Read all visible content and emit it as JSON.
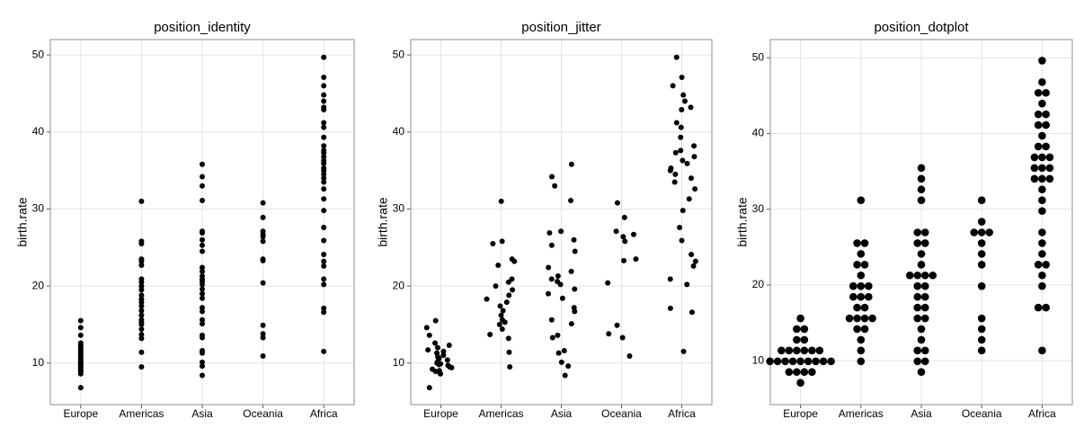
{
  "chart_data": [
    {
      "type": "scatter",
      "title": "position_identity",
      "y_label": "birth.rate",
      "categories": [
        "Europe",
        "Americas",
        "Asia",
        "Oceania",
        "Africa"
      ],
      "values": [
        [
          6.8,
          8.6,
          8.9,
          9.0,
          9.2,
          9.4,
          9.5,
          9.7,
          9.8,
          9.9,
          10.0,
          10.2,
          10.4,
          10.6,
          10.8,
          11.0,
          11.3,
          11.5,
          11.7,
          12.0,
          12.3,
          12.6,
          13.6,
          14.6,
          15.5
        ],
        [
          9.5,
          11.4,
          13.2,
          13.7,
          14.4,
          15.0,
          15.3,
          15.6,
          16.2,
          16.8,
          17.4,
          17.9,
          18.3,
          18.8,
          19.5,
          20.0,
          20.5,
          20.9,
          22.7,
          23.2,
          23.5,
          25.5,
          25.8,
          31.0
        ],
        [
          8.4,
          9.6,
          10.1,
          11.3,
          11.6,
          13.3,
          13.6,
          15.1,
          15.6,
          16.7,
          17.2,
          18.4,
          19.0,
          19.6,
          20.2,
          20.6,
          20.9,
          21.3,
          21.9,
          22.4,
          24.5,
          25.3,
          26.0,
          26.9,
          27.1,
          31.1,
          33.0,
          34.2,
          35.8
        ],
        [
          10.9,
          13.3,
          13.8,
          14.9,
          20.4,
          23.3,
          23.5,
          25.8,
          26.4,
          26.7,
          27.1,
          28.9,
          30.8
        ],
        [
          11.5,
          16.6,
          17.1,
          20.2,
          20.9,
          22.6,
          23.2,
          24.1,
          25.9,
          27.6,
          29.8,
          31.3,
          32.6,
          33.5,
          34.0,
          34.5,
          35.0,
          35.3,
          35.9,
          36.3,
          36.8,
          37.3,
          37.6,
          38.2,
          39.3,
          40.6,
          41.2,
          42.9,
          43.2,
          44.0,
          44.8,
          46.0,
          47.1,
          49.7
        ]
      ],
      "color": "#000000",
      "ylim": [
        4.6,
        52
      ],
      "yticks": [
        10,
        20,
        30,
        40,
        50
      ],
      "grid": true
    },
    {
      "type": "jitter",
      "title": "position_jitter",
      "y_label": "birth.rate",
      "categories": [
        "Europe",
        "Americas",
        "Asia",
        "Oceania",
        "Africa"
      ],
      "values": [
        [
          6.8,
          8.6,
          8.9,
          9.0,
          9.2,
          9.4,
          9.5,
          9.7,
          9.8,
          9.9,
          10.0,
          10.2,
          10.4,
          10.6,
          10.8,
          11.0,
          11.3,
          11.5,
          11.7,
          12.0,
          12.3,
          12.6,
          13.6,
          14.6,
          15.5
        ],
        [
          9.5,
          11.4,
          13.2,
          13.7,
          14.4,
          15.0,
          15.3,
          15.6,
          16.2,
          16.8,
          17.4,
          17.9,
          18.3,
          18.8,
          19.5,
          20.0,
          20.5,
          20.9,
          22.7,
          23.2,
          23.5,
          25.5,
          25.8,
          31.0
        ],
        [
          8.4,
          9.6,
          10.1,
          11.3,
          11.6,
          13.3,
          13.6,
          15.1,
          15.6,
          16.7,
          17.2,
          18.4,
          19.0,
          19.6,
          20.2,
          20.6,
          20.9,
          21.3,
          21.9,
          22.4,
          24.5,
          25.3,
          26.0,
          26.9,
          27.1,
          31.1,
          33.0,
          34.2,
          35.8
        ],
        [
          10.9,
          13.3,
          13.8,
          14.9,
          20.4,
          23.3,
          23.5,
          25.8,
          26.4,
          26.7,
          27.1,
          28.9,
          30.8
        ],
        [
          11.5,
          16.6,
          17.1,
          20.2,
          20.9,
          22.6,
          23.2,
          24.1,
          25.9,
          27.6,
          29.8,
          31.3,
          32.6,
          33.5,
          34.0,
          34.5,
          35.0,
          35.3,
          35.9,
          36.3,
          36.8,
          37.3,
          37.6,
          38.2,
          39.3,
          40.6,
          41.2,
          42.9,
          43.2,
          44.0,
          44.8,
          46.0,
          47.1,
          49.7
        ]
      ],
      "color": "#000000",
      "ylim": [
        4.6,
        52
      ],
      "yticks": [
        10,
        20,
        30,
        40,
        50
      ],
      "grid": true
    },
    {
      "type": "dotplot",
      "title": "position_dotplot",
      "y_label": "birth.rate",
      "categories": [
        "Europe",
        "Americas",
        "Asia",
        "Oceania",
        "Africa"
      ],
      "values": [
        [
          6.8,
          8.6,
          8.9,
          9.0,
          9.2,
          9.4,
          9.5,
          9.7,
          9.8,
          9.9,
          10.0,
          10.2,
          10.4,
          10.6,
          10.8,
          11.0,
          11.3,
          11.5,
          11.7,
          12.0,
          12.3,
          12.6,
          13.6,
          14.6,
          15.5
        ],
        [
          9.5,
          11.4,
          13.2,
          13.7,
          14.4,
          15.0,
          15.3,
          15.6,
          16.2,
          16.8,
          17.4,
          17.9,
          18.3,
          18.8,
          19.5,
          20.0,
          20.5,
          20.9,
          22.7,
          23.2,
          23.5,
          25.5,
          25.8,
          31.0
        ],
        [
          8.4,
          9.6,
          10.1,
          11.3,
          11.6,
          13.3,
          13.6,
          15.1,
          15.6,
          16.7,
          17.2,
          18.4,
          19.0,
          19.6,
          20.2,
          20.6,
          20.9,
          21.3,
          21.9,
          22.4,
          24.5,
          25.3,
          26.0,
          26.9,
          27.1,
          31.1,
          33.0,
          34.2,
          35.8
        ],
        [
          10.9,
          13.3,
          13.8,
          14.9,
          20.4,
          23.3,
          23.5,
          25.8,
          26.4,
          26.7,
          27.1,
          28.9,
          30.8
        ],
        [
          11.5,
          16.6,
          17.1,
          20.2,
          20.9,
          22.6,
          23.2,
          24.1,
          25.9,
          27.6,
          29.8,
          31.3,
          32.6,
          33.5,
          34.0,
          34.5,
          35.0,
          35.3,
          35.9,
          36.3,
          36.8,
          37.3,
          37.6,
          38.2,
          39.3,
          40.6,
          41.2,
          42.9,
          43.2,
          44.0,
          44.8,
          46.0,
          47.1,
          49.7
        ]
      ],
      "color": "#000000",
      "ylim": [
        4.2,
        52.4
      ],
      "yticks": [
        10,
        20,
        30,
        40,
        50
      ],
      "grid": true
    }
  ]
}
